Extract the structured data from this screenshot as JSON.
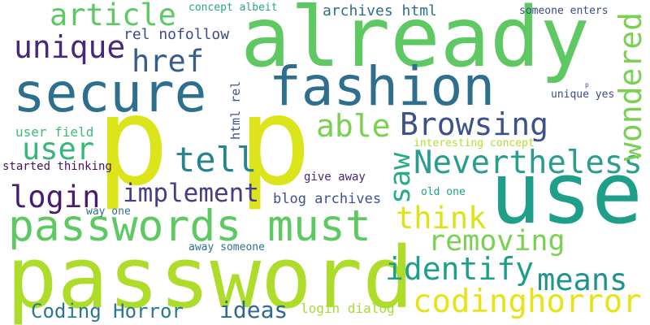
{
  "words": [
    {
      "text": "p",
      "color": "#dce41b"
    },
    {
      "text": "p",
      "color": "#dce41b"
    },
    {
      "text": "password",
      "color": "#aedc2b"
    },
    {
      "text": "use",
      "color": "#1f9e89"
    },
    {
      "text": "already",
      "color": "#5ec962"
    },
    {
      "text": "secure",
      "color": "#2f6f8e"
    },
    {
      "text": "fashion",
      "color": "#2f6f8e"
    },
    {
      "text": "passwords must",
      "color": "#5ec962"
    },
    {
      "text": "codinghorror",
      "color": "#e6e419"
    },
    {
      "text": "Nevertheless",
      "color": "#2a9d8f"
    },
    {
      "text": "identify",
      "color": "#1f9e89"
    },
    {
      "text": "Browsing",
      "color": "#3b528b"
    },
    {
      "text": "wondered",
      "color": "#7ad151"
    },
    {
      "text": "removing",
      "color": "#7ad151"
    },
    {
      "text": "means",
      "color": "#20938c"
    },
    {
      "text": "unique",
      "color": "#482878"
    },
    {
      "text": "article",
      "color": "#5ec962"
    },
    {
      "text": "login",
      "color": "#481d6f"
    },
    {
      "text": "implement",
      "color": "#433e85"
    },
    {
      "text": "tell",
      "color": "#25848e"
    },
    {
      "text": "able",
      "color": "#7ad151"
    },
    {
      "text": "user",
      "color": "#35b779"
    },
    {
      "text": "href",
      "color": "#365d8d"
    },
    {
      "text": "think",
      "color": "#dde318"
    },
    {
      "text": "saw",
      "color": "#26ad81"
    },
    {
      "text": "Coding Horror",
      "color": "#2a788e"
    },
    {
      "text": "ideas",
      "color": "#31688e"
    },
    {
      "text": "rel nofollow",
      "color": "#3e4a89"
    },
    {
      "text": "archives html",
      "color": "#2e6f8e"
    },
    {
      "text": "concept albeit",
      "color": "#26a982"
    },
    {
      "text": "someone enters",
      "color": "#3e4989"
    },
    {
      "text": "user field",
      "color": "#3dbc74"
    },
    {
      "text": "interesting concept",
      "color": "#b4de2c"
    },
    {
      "text": "started thinking",
      "color": "#471164"
    },
    {
      "text": "give away",
      "color": "#482677"
    },
    {
      "text": "blog archives",
      "color": "#3b528b"
    },
    {
      "text": "old one",
      "color": "#1fa187"
    },
    {
      "text": "way one",
      "color": "#2d708e"
    },
    {
      "text": "away someone",
      "color": "#2c728e"
    },
    {
      "text": "login dialog",
      "color": "#a5db36"
    },
    {
      "text": "unique yes",
      "color": "#3e4a89"
    },
    {
      "text": "html rel",
      "color": "#3b528b"
    },
    {
      "text": "p",
      "color": "#3b528b"
    }
  ]
}
